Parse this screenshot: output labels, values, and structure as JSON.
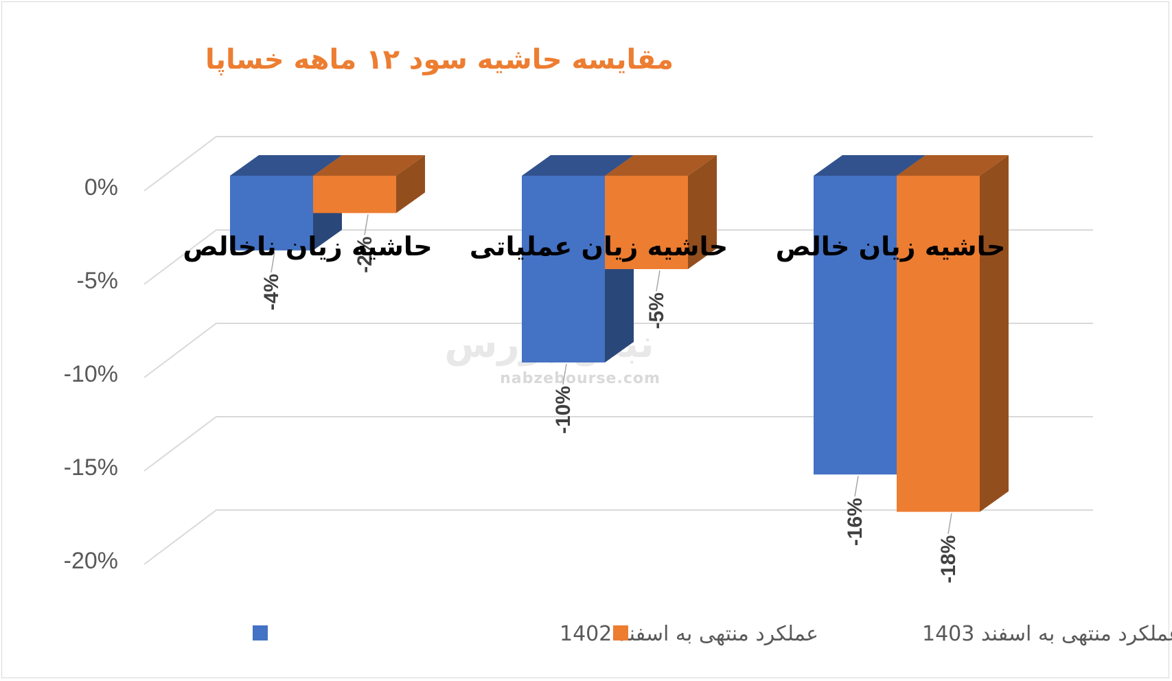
{
  "chart_data": {
    "type": "bar",
    "title": "مقایسه حاشیه سود ۱۲ ماهه خساپا",
    "categories": [
      "حاشیه زیان ناخالص",
      "حاشیه زیان عملیاتی",
      "حاشیه زیان خالص"
    ],
    "series": [
      {
        "name": "عملکرد منتهی به اسفند 1402",
        "color": "#4472c4",
        "values": [
          -4,
          -10,
          -16
        ],
        "labels": [
          "-4%",
          "-10%",
          "-16%"
        ]
      },
      {
        "name": "عملکرد منتهی به اسفند 1403",
        "color": "#ed7d31",
        "values": [
          -2,
          -5,
          -18
        ],
        "labels": [
          "-2%",
          "-5%",
          "-18%"
        ]
      }
    ],
    "ylim": [
      -20,
      0
    ],
    "yticks": [
      "0%",
      "-5%",
      "-10%",
      "-15%",
      "-20%"
    ],
    "legend": "bottom",
    "grid": true
  },
  "watermark": {
    "brand": "نبض بورس",
    "url": "nabzebourse.com"
  }
}
